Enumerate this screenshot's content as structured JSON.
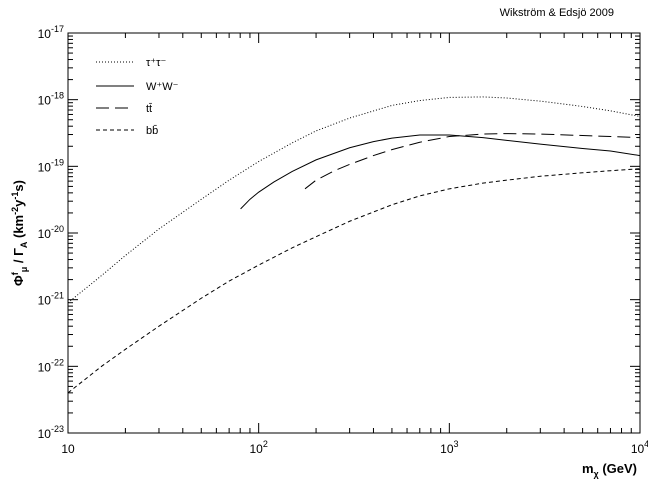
{
  "chart_data": {
    "type": "line",
    "credit": "Wikström & Edsjö 2009",
    "xlabel": {
      "base": "m",
      "sub": "χ",
      "rest": " (GeV)"
    },
    "ylabel": "Φ^f_μ / Γ_A (km^-2 y^-1 s)",
    "xscale": "log",
    "yscale": "log",
    "xlim": [
      10,
      10000
    ],
    "ylim": [
      1e-23,
      1e-17
    ],
    "x_tick_labels": [
      {
        "value": 10,
        "base": "10",
        "exp": ""
      },
      {
        "value": 100,
        "base": "10",
        "exp": "2"
      },
      {
        "value": 1000,
        "base": "10",
        "exp": "3"
      },
      {
        "value": 10000,
        "base": "10",
        "exp": "4"
      }
    ],
    "y_tick_labels": [
      {
        "value": 1e-17,
        "base": "10",
        "exp": "-17"
      },
      {
        "value": 1e-18,
        "base": "10",
        "exp": "-18"
      },
      {
        "value": 1e-19,
        "base": "10",
        "exp": "-19"
      },
      {
        "value": 1e-20,
        "base": "10",
        "exp": "-20"
      },
      {
        "value": 1e-21,
        "base": "10",
        "exp": "-21"
      },
      {
        "value": 1e-22,
        "base": "10",
        "exp": "-22"
      },
      {
        "value": 1e-23,
        "base": "10",
        "exp": "-23"
      }
    ],
    "legend_position": "top-left",
    "grid": false,
    "series": [
      {
        "name": "τ⁺τ⁻",
        "dash": "1,2",
        "x": [
          10,
          15,
          20,
          30,
          50,
          70,
          100,
          150,
          200,
          300,
          500,
          700,
          1000,
          1500,
          2000,
          3000,
          5000,
          7000,
          10000
        ],
        "y": [
          9e-22,
          2.3e-21,
          4.6e-21,
          1.15e-20,
          3.2e-20,
          6.2e-20,
          1.18e-19,
          2.25e-19,
          3.4e-19,
          5.3e-19,
          8.2e-19,
          9.7e-19,
          1.08e-18,
          1.1e-18,
          1.06e-18,
          9.5e-19,
          7.9e-19,
          6.8e-19,
          5.6e-19
        ]
      },
      {
        "name": "W⁺W⁻",
        "dash": "",
        "x": [
          80.4,
          90,
          100,
          120,
          150,
          200,
          300,
          400,
          500,
          700,
          1000,
          1500,
          2000,
          3000,
          5000,
          7000,
          10000
        ],
        "y": [
          2.3e-20,
          3.2e-20,
          4.1e-20,
          5.8e-20,
          8.4e-20,
          1.25e-19,
          1.9e-19,
          2.35e-19,
          2.65e-19,
          2.95e-19,
          2.95e-19,
          2.7e-19,
          2.45e-19,
          2.15e-19,
          1.85e-19,
          1.7e-19,
          1.45e-19
        ]
      },
      {
        "name": "tt̄",
        "dash": "13,6",
        "x": [
          175,
          200,
          250,
          300,
          400,
          500,
          700,
          1000,
          1500,
          2000,
          3000,
          5000,
          7000,
          10000
        ],
        "y": [
          4.6e-20,
          6.2e-20,
          8.6e-20,
          1.07e-19,
          1.45e-19,
          1.78e-19,
          2.3e-19,
          2.8e-19,
          3.05e-19,
          3.1e-19,
          3.05e-19,
          2.9e-19,
          2.8e-19,
          2.7e-19
        ]
      },
      {
        "name": "bb̄",
        "dash": "4,3",
        "x": [
          10,
          15,
          20,
          30,
          50,
          70,
          100,
          150,
          200,
          300,
          500,
          700,
          1000,
          1500,
          2000,
          3000,
          5000,
          7000,
          10000
        ],
        "y": [
          4e-23,
          1e-22,
          1.8e-22,
          4e-22,
          1.05e-21,
          1.9e-21,
          3.3e-21,
          6e-21,
          8.8e-21,
          1.5e-20,
          2.65e-20,
          3.6e-20,
          4.6e-20,
          5.6e-20,
          6.2e-20,
          7.1e-20,
          8e-20,
          8.6e-20,
          9.2e-20
        ]
      }
    ]
  }
}
